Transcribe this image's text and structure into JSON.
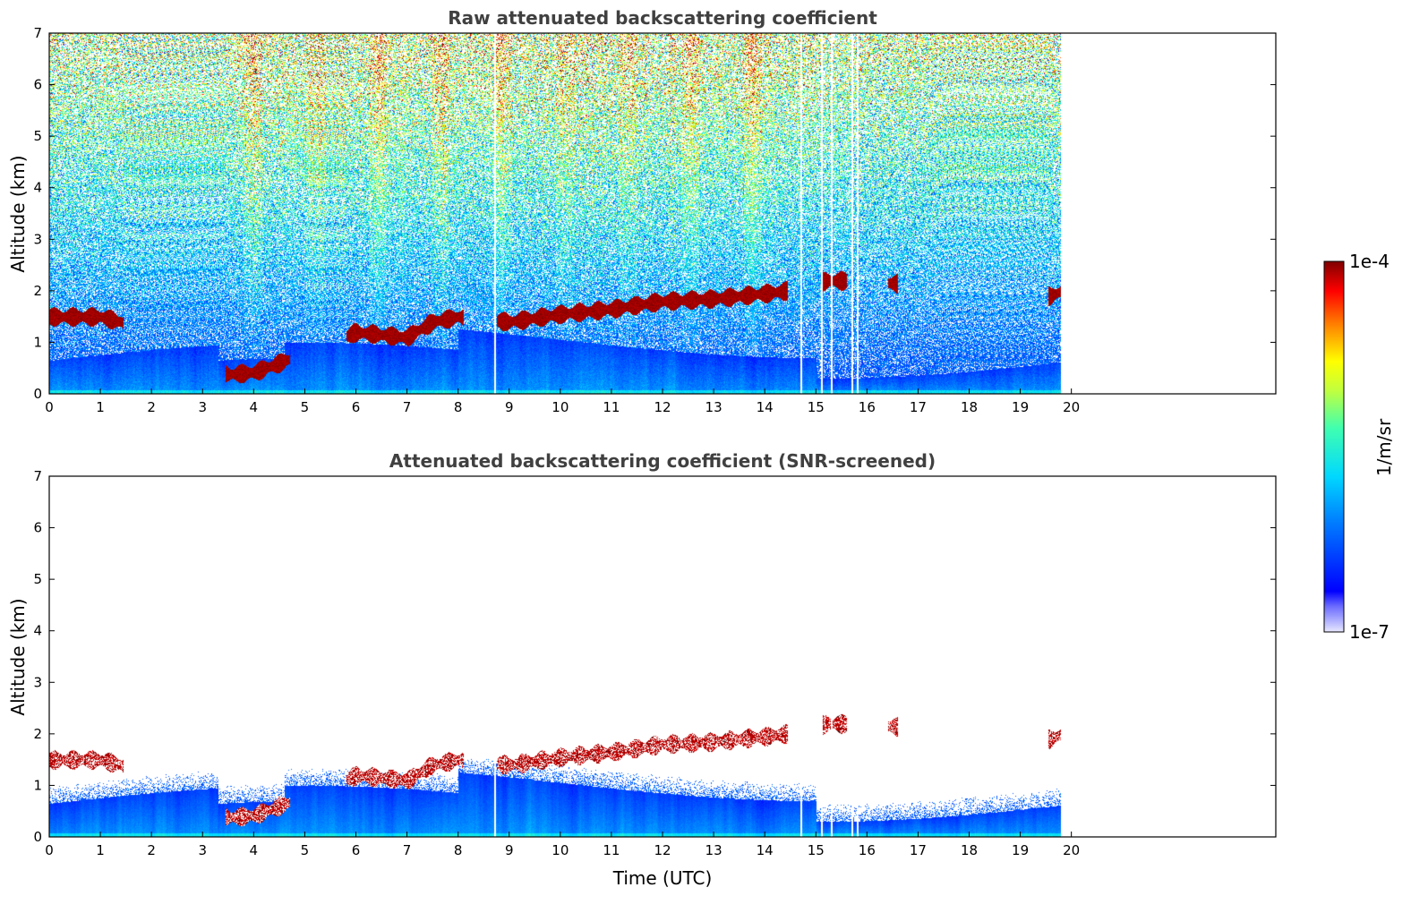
{
  "chart_data": [
    {
      "type": "heatmap",
      "title": "Raw attenuated backscattering coefficient",
      "ylabel": "Altitude (km)",
      "xlabel": "",
      "xlim": [
        0,
        24
      ],
      "ylim": [
        0,
        7
      ],
      "x_ticks": [
        "0",
        "1",
        "2",
        "3",
        "4",
        "5",
        "6",
        "7",
        "8",
        "9",
        "10",
        "11",
        "12",
        "13",
        "14",
        "15",
        "16",
        "17",
        "18",
        "19",
        "20"
      ],
      "y_ticks": [
        "0",
        "1",
        "2",
        "3",
        "4",
        "5",
        "6",
        "7"
      ],
      "data_end_hour": 19.8,
      "grid": false,
      "noisy": true,
      "cloud_layer": [
        [
          0,
          1.5
        ],
        [
          1,
          1.5
        ],
        [
          1.4,
          1.4
        ],
        [
          3.5,
          0.38
        ],
        [
          4,
          0.42
        ],
        [
          4.5,
          0.6
        ],
        [
          6,
          1.2
        ],
        [
          7,
          1.1
        ],
        [
          7.5,
          1.4
        ],
        [
          8,
          1.5
        ],
        [
          9,
          1.4
        ],
        [
          10,
          1.55
        ],
        [
          11,
          1.65
        ],
        [
          12,
          1.8
        ],
        [
          13,
          1.85
        ],
        [
          14,
          1.95
        ],
        [
          14.4,
          2.0
        ],
        [
          15.2,
          2.2
        ],
        [
          15.5,
          2.2
        ],
        [
          16.5,
          2.15
        ],
        [
          19.6,
          1.9
        ],
        [
          19.8,
          2.0
        ]
      ],
      "gap_hours": [
        8.7,
        14.7,
        15.1,
        15.3,
        15.7,
        15.8
      ]
    },
    {
      "type": "heatmap",
      "title": "Attenuated backscattering coefficient (SNR-screened)",
      "ylabel": "Altitude (km)",
      "xlabel": "Time (UTC)",
      "xlim": [
        0,
        24
      ],
      "ylim": [
        0,
        7
      ],
      "x_ticks": [
        "0",
        "1",
        "2",
        "3",
        "4",
        "5",
        "6",
        "7",
        "8",
        "9",
        "10",
        "11",
        "12",
        "13",
        "14",
        "15",
        "16",
        "17",
        "18",
        "19",
        "20"
      ],
      "y_ticks": [
        "0",
        "1",
        "2",
        "3",
        "4",
        "5",
        "6",
        "7"
      ],
      "data_end_hour": 19.8,
      "grid": false,
      "noisy": false,
      "cloud_layer": [
        [
          0,
          1.5
        ],
        [
          1,
          1.5
        ],
        [
          1.4,
          1.4
        ],
        [
          3.5,
          0.38
        ],
        [
          4,
          0.42
        ],
        [
          4.5,
          0.6
        ],
        [
          6,
          1.2
        ],
        [
          7,
          1.1
        ],
        [
          7.5,
          1.4
        ],
        [
          8,
          1.5
        ],
        [
          9,
          1.4
        ],
        [
          10,
          1.55
        ],
        [
          11,
          1.65
        ],
        [
          12,
          1.8
        ],
        [
          13,
          1.85
        ],
        [
          14,
          1.95
        ],
        [
          14.4,
          2.0
        ],
        [
          15.2,
          2.2
        ],
        [
          15.5,
          2.2
        ],
        [
          16.5,
          2.15
        ],
        [
          19.6,
          1.9
        ],
        [
          19.8,
          2.0
        ]
      ],
      "gap_hours": [
        8.7,
        14.7,
        15.1,
        15.3,
        15.7,
        15.8
      ]
    }
  ],
  "colorbar": {
    "label": "1/m/sr",
    "max_label": "1e-4",
    "min_label": "1e-7",
    "scale": "log",
    "colormap": "jet"
  }
}
